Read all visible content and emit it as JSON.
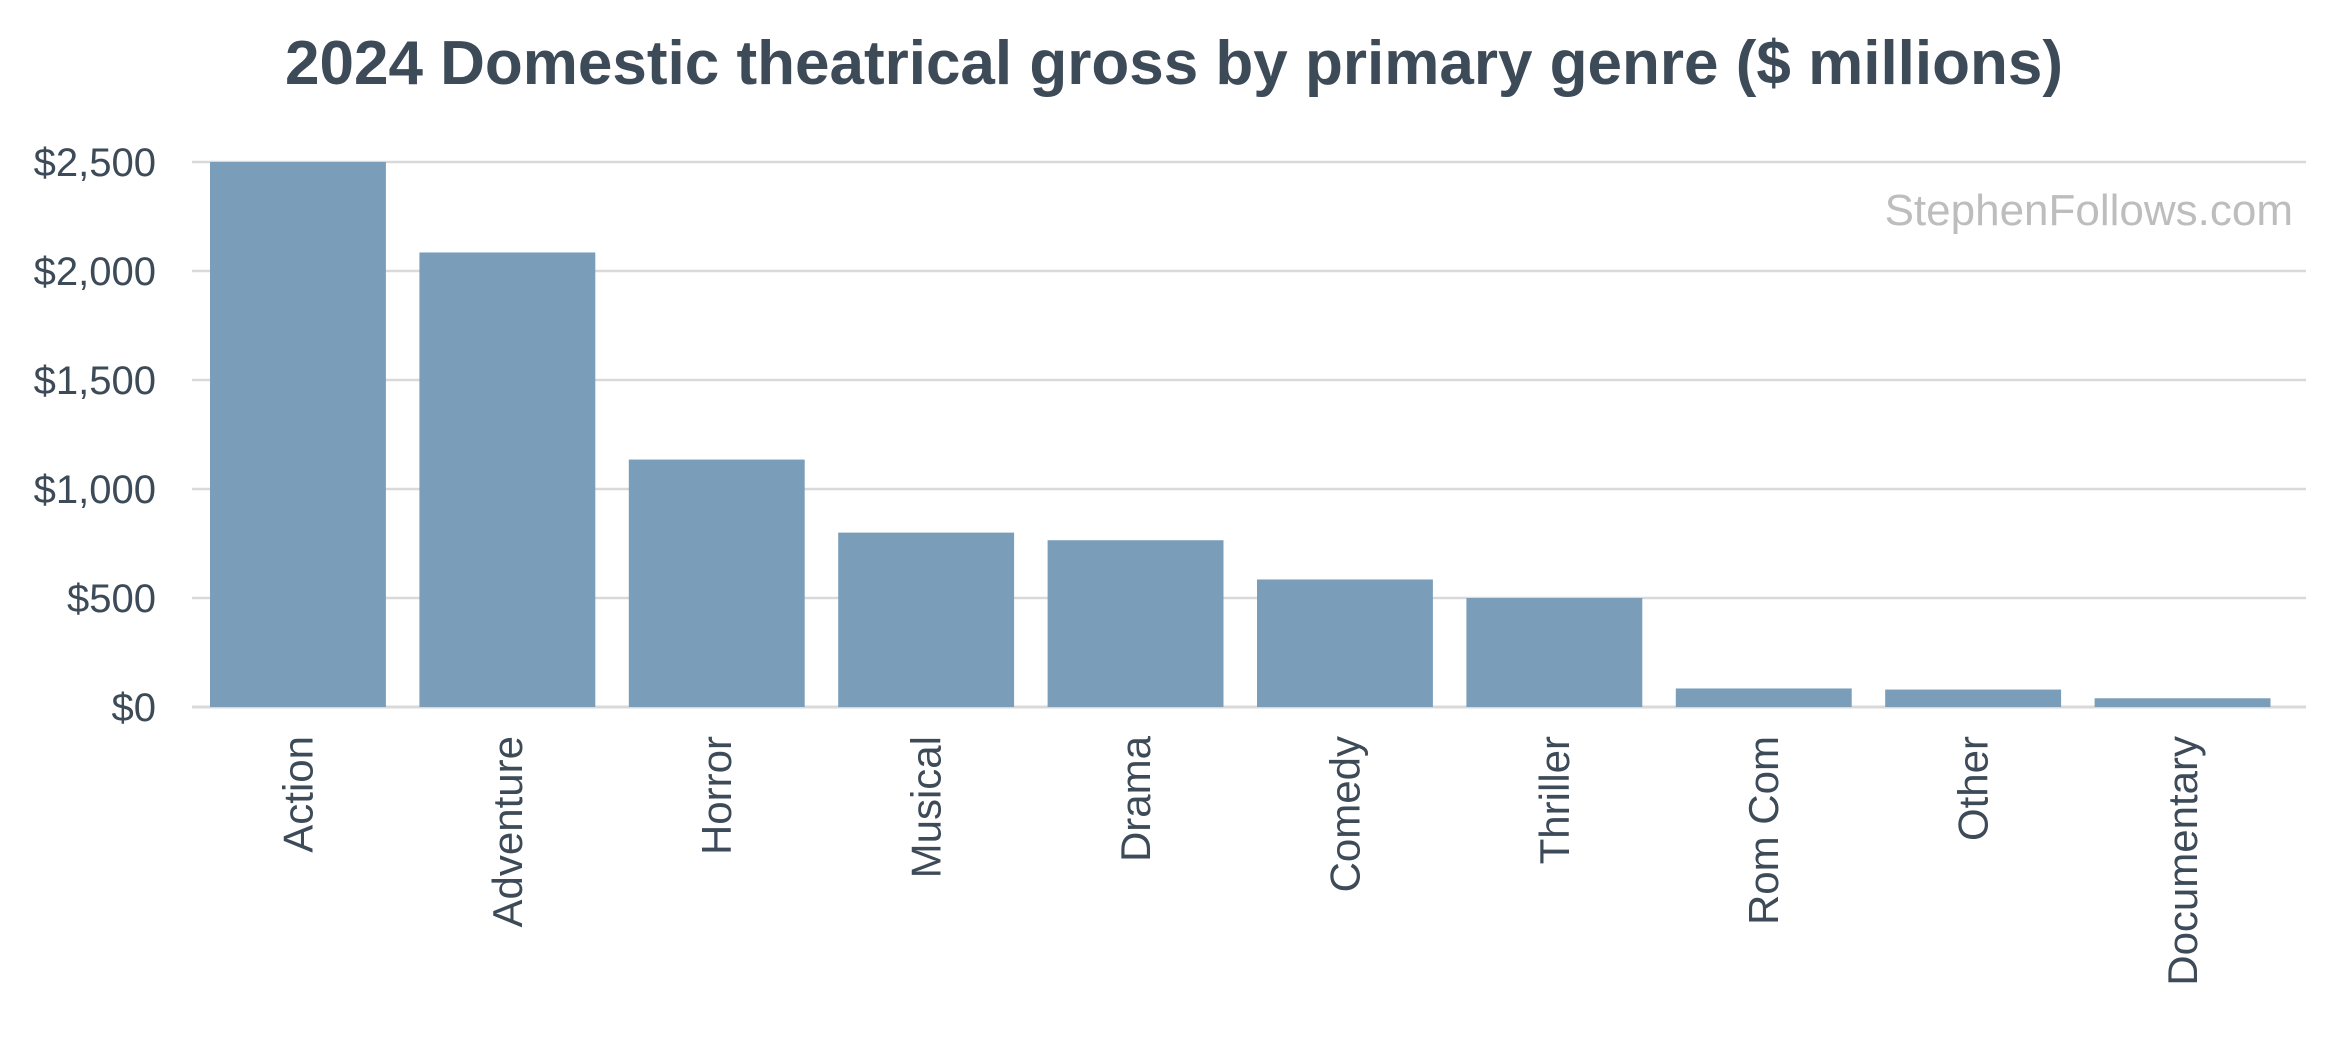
{
  "chart_data": {
    "type": "bar",
    "title": "2024 Domestic theatrical gross by primary genre ($ millions)",
    "xlabel": "",
    "ylabel": "",
    "categories": [
      "Action",
      "Adventure",
      "Horror",
      "Musical",
      "Drama",
      "Comedy",
      "Thriller",
      "Rom Com",
      "Other",
      "Documentary"
    ],
    "values": [
      2500,
      2085,
      1135,
      800,
      765,
      585,
      500,
      85,
      80,
      40
    ],
    "ylim": [
      0,
      2500
    ],
    "yticks": [
      0,
      500,
      1000,
      1500,
      2000,
      2500
    ],
    "ytick_labels": [
      "$0",
      "$500",
      "$1,000",
      "$1,500",
      "$2,000",
      "$2,500"
    ],
    "grid": true,
    "legend": "none",
    "bar_color": "#7a9db9",
    "grid_color": "#d9d9d9",
    "text_color": "#3d4a58",
    "watermark": "StephenFollows.com"
  }
}
